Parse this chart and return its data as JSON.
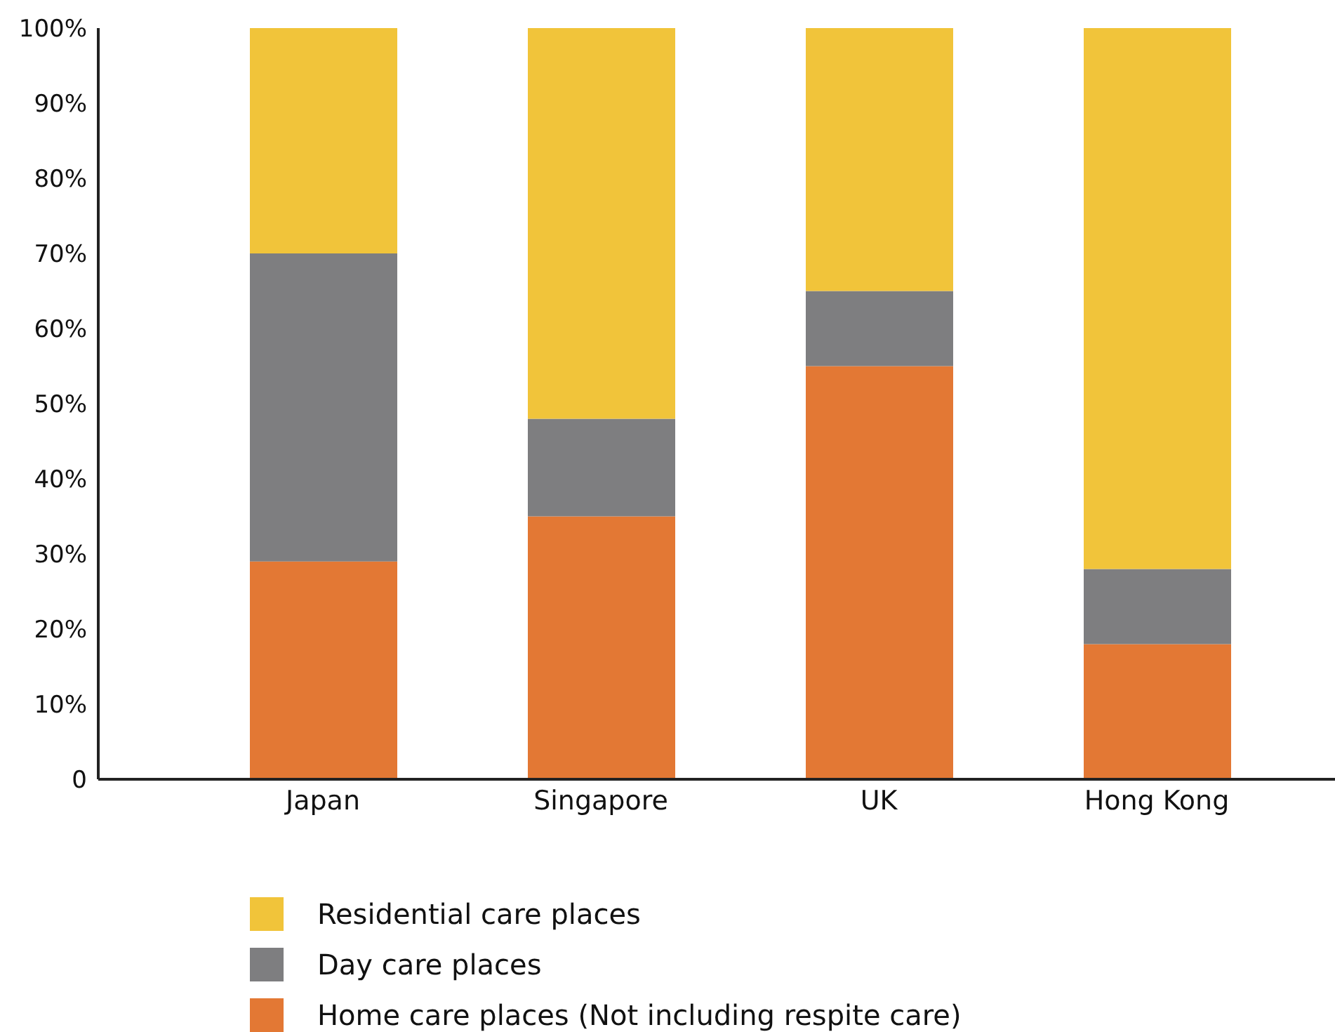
{
  "chart_data": {
    "type": "bar",
    "stacked": true,
    "categories": [
      "Japan",
      "Singapore",
      "UK",
      "Hong Kong"
    ],
    "series": [
      {
        "name": "Home care places (Not including respite care)",
        "color": "#e37834",
        "values": [
          29,
          35,
          55,
          18
        ]
      },
      {
        "name": "Day care places",
        "color": "#7e7e80",
        "values": [
          41,
          13,
          10,
          10
        ]
      },
      {
        "name": "Residential care places",
        "color": "#f1c43a",
        "values": [
          30,
          52,
          35,
          72
        ]
      }
    ],
    "ylim": [
      0,
      100
    ],
    "yticks": [
      {
        "value": 0,
        "label": "0"
      },
      {
        "value": 10,
        "label": "10%"
      },
      {
        "value": 20,
        "label": "20%"
      },
      {
        "value": 30,
        "label": "30%"
      },
      {
        "value": 40,
        "label": "40%"
      },
      {
        "value": 50,
        "label": "50%"
      },
      {
        "value": 60,
        "label": "60%"
      },
      {
        "value": 70,
        "label": "70%"
      },
      {
        "value": 80,
        "label": "80%"
      },
      {
        "value": 90,
        "label": "90%"
      },
      {
        "value": 100,
        "label": "100%"
      }
    ],
    "grid": false,
    "legend": "bottom"
  }
}
